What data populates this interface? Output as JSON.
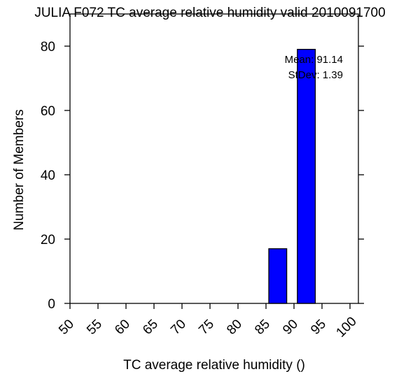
{
  "chart_data": {
    "type": "bar",
    "title": "JULIA F072 TC average relative humidity valid 2010091700",
    "xlabel": "TC average relative humidity ()",
    "ylabel": "Number of Members",
    "xlim": [
      50,
      100
    ],
    "ylim": [
      0,
      90
    ],
    "xticks": [
      "50",
      "55",
      "60",
      "65",
      "70",
      "75",
      "80",
      "85",
      "90",
      "95",
      "100"
    ],
    "yticks": [
      "0",
      "20",
      "40",
      "60",
      "80"
    ],
    "bars": [
      {
        "x0": 85.5,
        "x1": 88.7,
        "value": 17
      },
      {
        "x0": 90.6,
        "x1": 93.8,
        "value": 79
      }
    ],
    "annotations": {
      "mean": "Mean: 91.14",
      "stdev": "StDev: 1.39"
    },
    "bar_color": "#0000ff",
    "grid": false,
    "legend": "none"
  }
}
